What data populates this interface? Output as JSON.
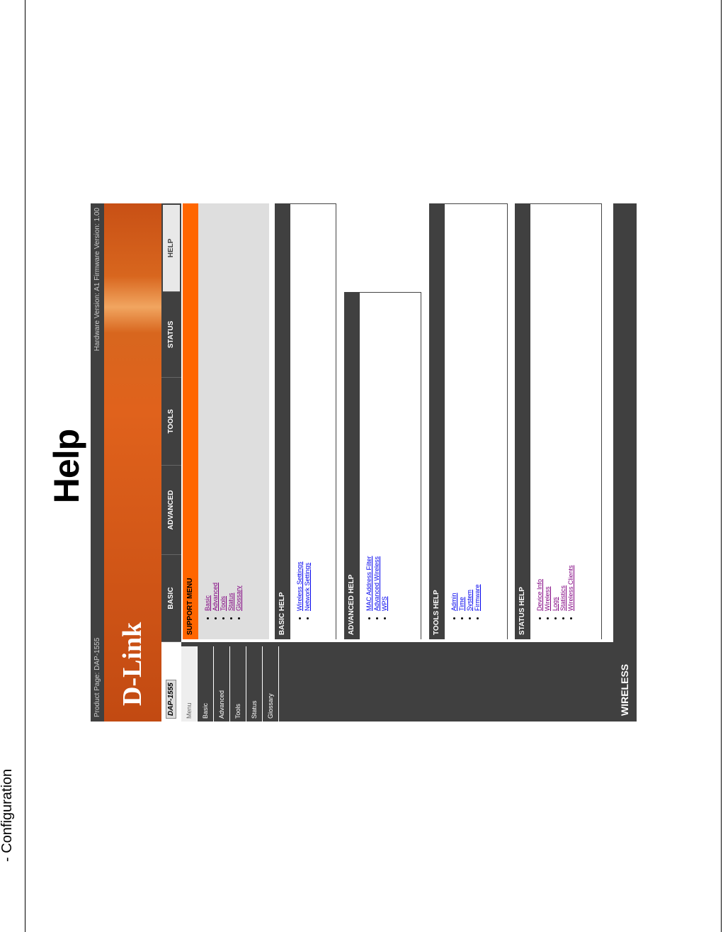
{
  "page": {
    "heading": "Help",
    "section": "- Configuration"
  },
  "shot": {
    "product": "Product Page: DAP-1555",
    "versions": "Hardware Version: A1   Firmware Version: 1.00",
    "logo": "D-Link",
    "model": "DAP-1555",
    "tabs": [
      "BASIC",
      "ADVANCED",
      "TOOLS",
      "STATUS",
      "HELP"
    ],
    "active_tab": "HELP",
    "sidebar": [
      "Menu",
      "Basic",
      "Advanced",
      "Tools",
      "Status",
      "Glossary"
    ],
    "support_menu": {
      "title": "SUPPORT MENU",
      "items": [
        "Basic",
        "Advanced",
        "Tools",
        "Status",
        "Glossary"
      ]
    },
    "basic_help": {
      "title": "BASIC HELP",
      "items": [
        "Wireless Settings",
        "Network Settings"
      ]
    },
    "advanced_help": {
      "title": "ADVANCED HELP",
      "items": [
        "MAC Address Filter",
        "Advanced Wireless",
        "WPS"
      ]
    },
    "tools_help": {
      "title": "TOOLS HELP",
      "items": [
        "Admin",
        "Time",
        "System",
        "Firmware"
      ]
    },
    "status_help": {
      "title": "STATUS HELP",
      "items": [
        "Device Info",
        "Wireless",
        "Logs",
        "Statistics",
        "Wireless Clients"
      ]
    },
    "footer": "WIRELESS",
    "colors": {
      "accent": "#ff6600",
      "dark": "#404040",
      "link": "#0000ee",
      "visited": "#800080"
    }
  }
}
